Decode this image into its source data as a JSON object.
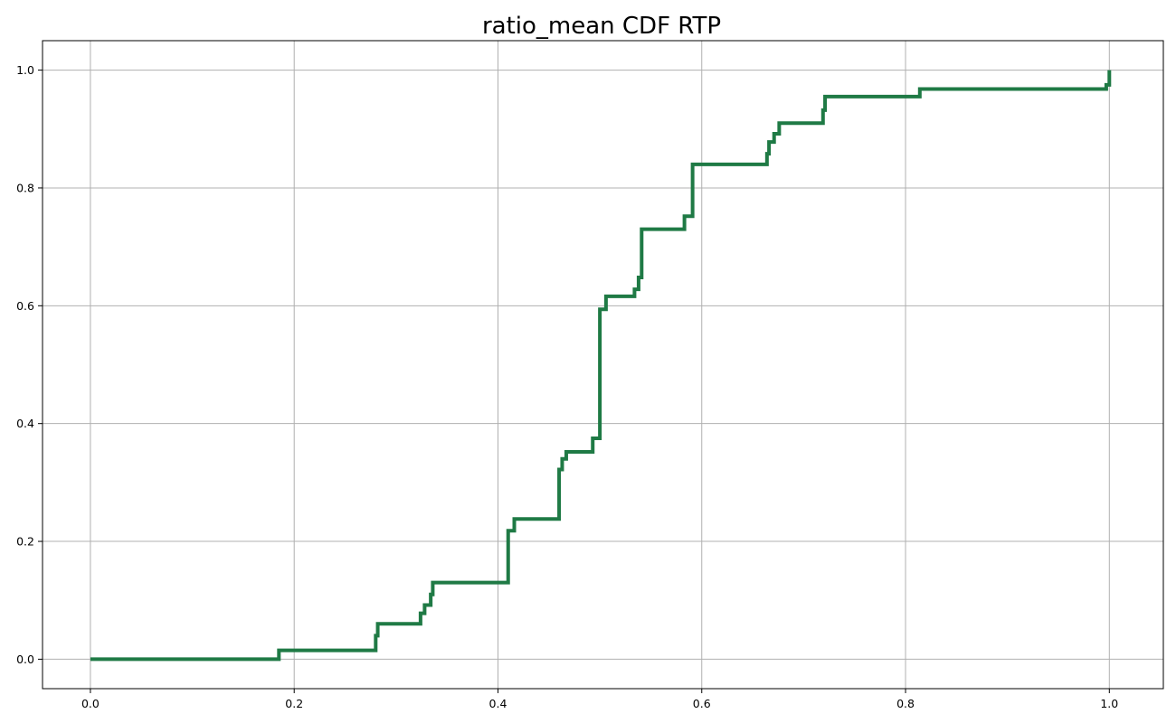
{
  "chart_data": {
    "type": "line",
    "title": "ratio_mean CDF RTP",
    "xlabel": "",
    "ylabel": "",
    "xlim": [
      -0.047,
      1.053
    ],
    "ylim": [
      -0.05,
      1.05
    ],
    "xticks": [
      0.0,
      0.2,
      0.4,
      0.6,
      0.8,
      1.0
    ],
    "xtick_labels": [
      "0.0",
      "0.2",
      "0.4",
      "0.6",
      "0.8",
      "1.0"
    ],
    "yticks": [
      0.0,
      0.2,
      0.4,
      0.6,
      0.8,
      1.0
    ],
    "ytick_labels": [
      "0.0",
      "0.2",
      "0.4",
      "0.6",
      "0.8",
      "1.0"
    ],
    "grid": true,
    "legend": "none",
    "series": [
      {
        "color": "#1f7a45",
        "style": "step",
        "points": [
          [
            0.0,
            0.0
          ],
          [
            0.185,
            0.0
          ],
          [
            0.185,
            0.015
          ],
          [
            0.28,
            0.015
          ],
          [
            0.28,
            0.04
          ],
          [
            0.282,
            0.04
          ],
          [
            0.282,
            0.06
          ],
          [
            0.324,
            0.06
          ],
          [
            0.324,
            0.078
          ],
          [
            0.328,
            0.078
          ],
          [
            0.328,
            0.092
          ],
          [
            0.334,
            0.092
          ],
          [
            0.334,
            0.11
          ],
          [
            0.336,
            0.11
          ],
          [
            0.336,
            0.13
          ],
          [
            0.41,
            0.13
          ],
          [
            0.41,
            0.218
          ],
          [
            0.416,
            0.218
          ],
          [
            0.416,
            0.238
          ],
          [
            0.46,
            0.238
          ],
          [
            0.46,
            0.322
          ],
          [
            0.463,
            0.322
          ],
          [
            0.463,
            0.34
          ],
          [
            0.467,
            0.34
          ],
          [
            0.467,
            0.352
          ],
          [
            0.493,
            0.352
          ],
          [
            0.493,
            0.375
          ],
          [
            0.5,
            0.375
          ],
          [
            0.5,
            0.594
          ],
          [
            0.506,
            0.594
          ],
          [
            0.506,
            0.616
          ],
          [
            0.534,
            0.616
          ],
          [
            0.534,
            0.628
          ],
          [
            0.538,
            0.628
          ],
          [
            0.538,
            0.648
          ],
          [
            0.541,
            0.648
          ],
          [
            0.541,
            0.73
          ],
          [
            0.583,
            0.73
          ],
          [
            0.583,
            0.752
          ],
          [
            0.591,
            0.752
          ],
          [
            0.591,
            0.84
          ],
          [
            0.664,
            0.84
          ],
          [
            0.664,
            0.858
          ],
          [
            0.666,
            0.858
          ],
          [
            0.666,
            0.878
          ],
          [
            0.671,
            0.878
          ],
          [
            0.671,
            0.892
          ],
          [
            0.676,
            0.892
          ],
          [
            0.676,
            0.91
          ],
          [
            0.719,
            0.91
          ],
          [
            0.719,
            0.932
          ],
          [
            0.721,
            0.932
          ],
          [
            0.721,
            0.955
          ],
          [
            0.814,
            0.955
          ],
          [
            0.814,
            0.968
          ],
          [
            0.997,
            0.968
          ],
          [
            0.997,
            0.975
          ],
          [
            1.0,
            0.975
          ],
          [
            1.0,
            1.0
          ]
        ]
      }
    ]
  }
}
